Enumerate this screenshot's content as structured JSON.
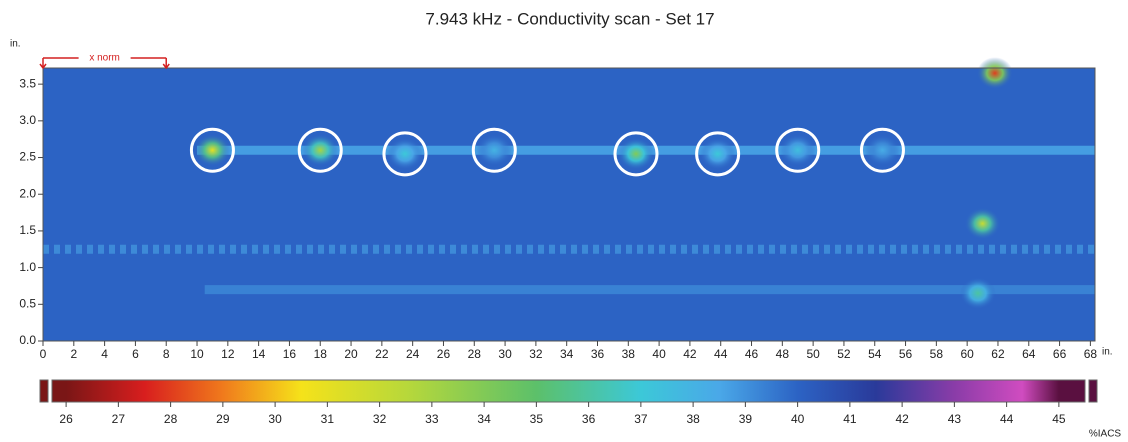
{
  "chart_data": {
    "type": "heatmap",
    "title": "7.943 kHz -  Conductivity scan - Set 17",
    "y_label": "in.",
    "x_label": "in.",
    "colorbar_label": "%IACS",
    "annotation": {
      "text": "x norm",
      "x": [
        0,
        8
      ],
      "color": "#d42020"
    },
    "xlim": [
      0,
      68.3
    ],
    "xticks": [
      0,
      2,
      4,
      6,
      8,
      10,
      12,
      14,
      16,
      18,
      20,
      22,
      24,
      26,
      28,
      30,
      32,
      34,
      36,
      38,
      40,
      42,
      44,
      46,
      48,
      50,
      52,
      54,
      56,
      58,
      60,
      62,
      64,
      66,
      68
    ],
    "ylim": [
      0,
      3.72
    ],
    "yticks": [
      {
        "value": 0,
        "label": "0.0"
      },
      {
        "value": 0.5,
        "label": "0.5"
      },
      {
        "value": 1,
        "label": "1.0"
      },
      {
        "value": 1.5,
        "label": "1.5"
      },
      {
        "value": 2,
        "label": "2.0"
      },
      {
        "value": 2.5,
        "label": "2.5"
      },
      {
        "value": 3,
        "label": "3.0"
      },
      {
        "value": 3.5,
        "label": "3.5"
      }
    ],
    "clim": [
      25.73,
      45.5
    ],
    "cticks": [
      26,
      27,
      28,
      29,
      30,
      31,
      32,
      33,
      34,
      35,
      36,
      37,
      38,
      39,
      40,
      41,
      42,
      43,
      44,
      45
    ],
    "colorscale": [
      [
        26,
        "#7a1616"
      ],
      [
        27.5,
        "#d81e1e"
      ],
      [
        29,
        "#f07a1c"
      ],
      [
        30.5,
        "#f5e21a"
      ],
      [
        32.5,
        "#b8d83a"
      ],
      [
        35,
        "#5cc06a"
      ],
      [
        37,
        "#3cc8d8"
      ],
      [
        38.5,
        "#4aa8e8"
      ],
      [
        40,
        "#2c63c4"
      ],
      [
        41.5,
        "#2a3a9a"
      ],
      [
        43,
        "#8a3ca8"
      ],
      [
        44.3,
        "#d04cc0"
      ],
      [
        45,
        "#5a1040"
      ]
    ],
    "background_value": 40,
    "tracks": [
      {
        "y": 2.6,
        "x": [
          10,
          68.3
        ],
        "value": 38.5,
        "dashed": false
      },
      {
        "y": 1.25,
        "x": [
          0,
          68.3
        ],
        "value": 39,
        "dashed": true
      },
      {
        "y": 0.7,
        "x": [
          10.5,
          68.3
        ],
        "value": 39.2,
        "dashed": false
      }
    ],
    "spots": [
      {
        "x": 11,
        "y": 2.6,
        "value": 31,
        "circled": true
      },
      {
        "x": 18,
        "y": 2.6,
        "value": 33,
        "circled": true
      },
      {
        "x": 23.5,
        "y": 2.55,
        "value": 37,
        "circled": true
      },
      {
        "x": 29.3,
        "y": 2.6,
        "value": 38,
        "circled": true
      },
      {
        "x": 38.5,
        "y": 2.55,
        "value": 34,
        "circled": true
      },
      {
        "x": 43.8,
        "y": 2.55,
        "value": 37,
        "circled": true
      },
      {
        "x": 49,
        "y": 2.6,
        "value": 37.5,
        "circled": true
      },
      {
        "x": 54.5,
        "y": 2.6,
        "value": 38.3,
        "circled": true
      },
      {
        "x": 61.8,
        "y": 3.65,
        "value": 28,
        "circled": false
      },
      {
        "x": 61,
        "y": 1.6,
        "value": 32,
        "circled": false
      },
      {
        "x": 60.7,
        "y": 0.65,
        "value": 36,
        "circled": false
      }
    ]
  }
}
